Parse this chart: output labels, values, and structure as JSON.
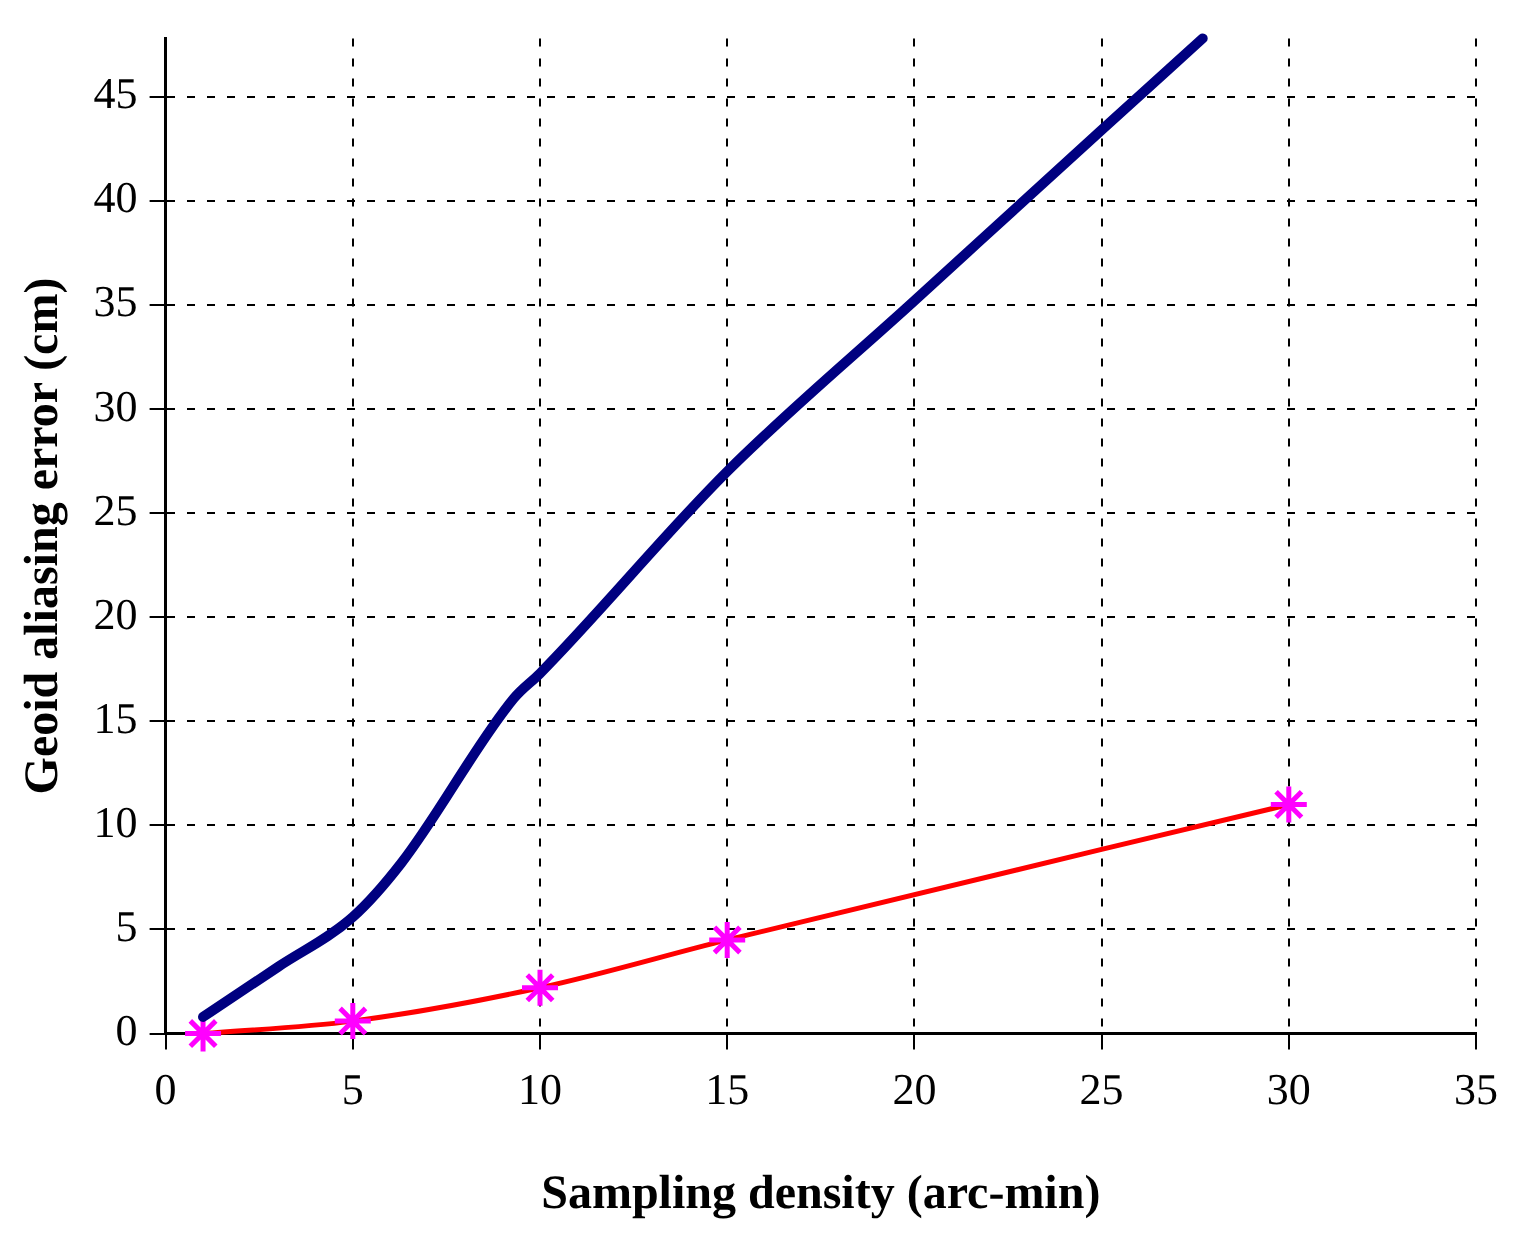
{
  "chart_data": {
    "type": "line",
    "xlabel": "Sampling density (arc-min)",
    "ylabel": "Geoid aliasing error (cm)",
    "xlim": [
      0,
      35
    ],
    "xticks": [
      0,
      5,
      10,
      15,
      20,
      25,
      30,
      35
    ],
    "ylim": [
      0,
      47.8
    ],
    "yticks": [
      0,
      5,
      10,
      15,
      20,
      25,
      30,
      35,
      40,
      45
    ],
    "grid": true,
    "legend": false,
    "line_style": "solid",
    "series": [
      {
        "color": "#000080",
        "marker": "none",
        "x": [
          1,
          3,
          5,
          6.3,
          9.3,
          10,
          15,
          20,
          25,
          27.7
        ],
        "values": [
          0.8,
          3.2,
          5.6,
          8.2,
          16.1,
          17.3,
          27,
          35.2,
          43.4,
          47.8
        ]
      },
      {
        "color": "#ff0000",
        "colors": [
          "#ff00ff",
          "#ff00ff",
          "#ff00ff",
          "#ff00ff",
          "#ff00ff"
        ],
        "marker": "cross",
        "x": [
          1,
          5,
          10,
          15,
          30
        ],
        "values": [
          0,
          0.6,
          2.2,
          4.5,
          11
        ]
      }
    ]
  }
}
